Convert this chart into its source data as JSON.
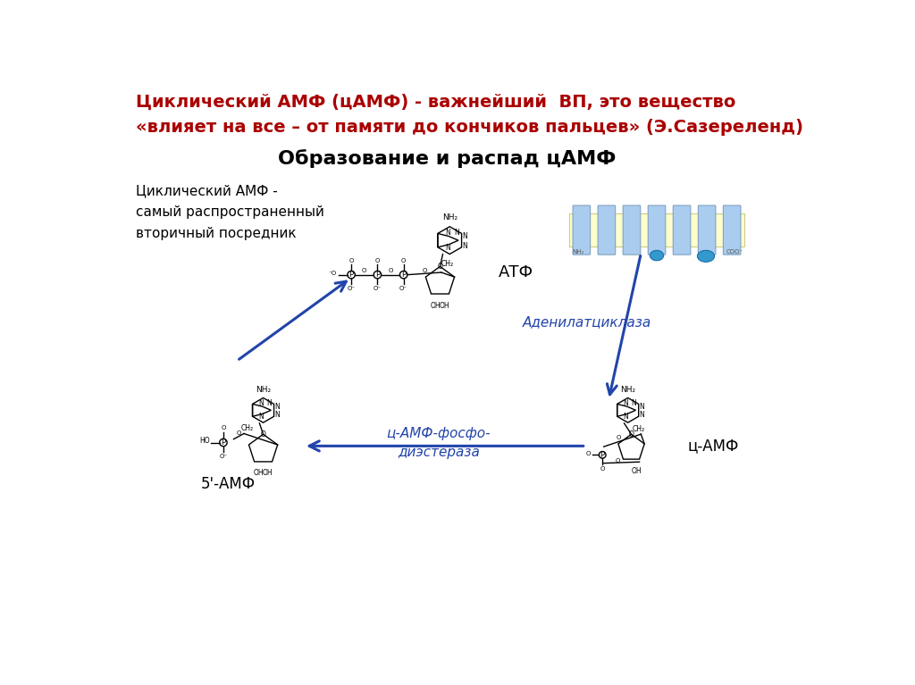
{
  "bg_color": "#ffffff",
  "title_line1_bold": "Циклический АМФ (цАМФ)",
  "title_line1_normal": " - важнейший  ВП, это вещество",
  "title_line2": "«влияет на все – от памяти до кончиков пальцев» (Э.Сазереленд)",
  "title_color": "#aa0000",
  "subtitle": "Образование и распад цАМФ",
  "subtitle_color": "#000000",
  "label_cyclic": "Циклический АМФ -\nсамый распространенный\nвторичный посредник",
  "label_atf": "АТФ",
  "label_adenylate": "Аденилатциклаза",
  "label_camp": "ц-АМФ",
  "label_5amp": "5'-АМФ",
  "label_phospho": "ц-АМФ-фосфо-\nдиэстераза",
  "arrow_color": "#2244aa",
  "struct_color": "#000000",
  "membrane_yellow": "#ffffcc",
  "membrane_blue_rect": "#aaccee",
  "membrane_circle": "#3399cc",
  "text_color_dark": "#000000",
  "italic_color": "#2244aa"
}
